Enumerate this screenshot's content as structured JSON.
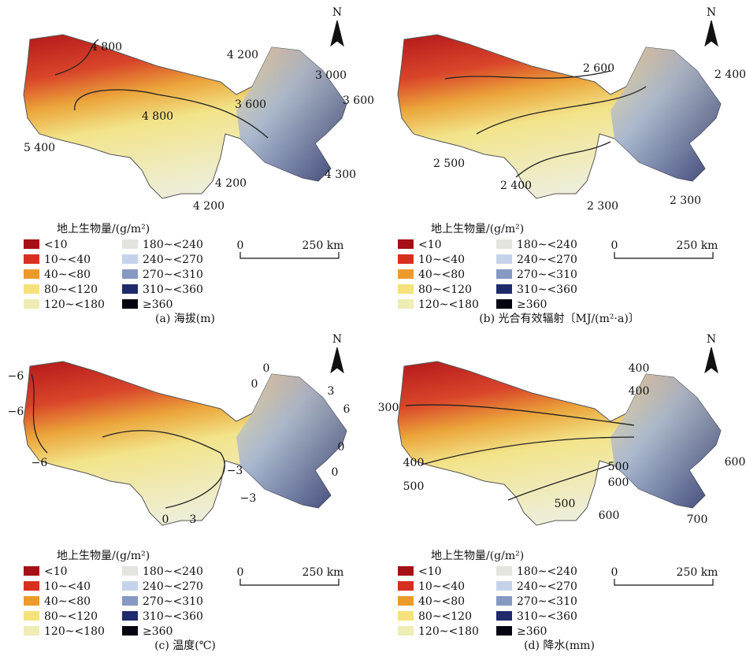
{
  "panels": [
    {
      "north": "N",
      "contour_labels": [
        "4 800",
        "4 200",
        "3 000",
        "3 600",
        "3 600",
        "4 800",
        "5 400",
        "4 300",
        "4 200",
        "4 200"
      ],
      "legend_title": "地上生物量/(g/m²)",
      "legend": [
        {
          "label": "<10",
          "color": "#a50f15"
        },
        {
          "label": "10~<40",
          "color": "#d7301f"
        },
        {
          "label": "40~<80",
          "color": "#ec9b2a"
        },
        {
          "label": "80~<120",
          "color": "#f5e27a"
        },
        {
          "label": "120~<180",
          "color": "#efecb4"
        },
        {
          "label": "180~<240",
          "color": "#e4e4de"
        },
        {
          "label": "240~<270",
          "color": "#c5d3ea"
        },
        {
          "label": "270~<310",
          "color": "#8599c2"
        },
        {
          "label": "310~<360",
          "color": "#1f2a6b"
        },
        {
          "label": "≥360",
          "color": "#050510"
        }
      ],
      "scale": [
        "0",
        "250 km"
      ],
      "caption": "(a)  海拔(m)"
    },
    {
      "north": "N",
      "contour_labels": [
        "2 600",
        "2 400",
        "2 500",
        "2 400",
        "2 300",
        "2 300"
      ],
      "legend_title": "地上生物量/(g/m²)",
      "legend": [
        {
          "label": "<10",
          "color": "#a50f15"
        },
        {
          "label": "10~<40",
          "color": "#d7301f"
        },
        {
          "label": "40~<80",
          "color": "#ec9b2a"
        },
        {
          "label": "80~<120",
          "color": "#f5e27a"
        },
        {
          "label": "120~<180",
          "color": "#efecb4"
        },
        {
          "label": "180~<240",
          "color": "#e4e4de"
        },
        {
          "label": "240~<270",
          "color": "#c5d3ea"
        },
        {
          "label": "270~<310",
          "color": "#8599c2"
        },
        {
          "label": "310~<360",
          "color": "#1f2a6b"
        },
        {
          "label": "≥360",
          "color": "#050510"
        }
      ],
      "scale": [
        "0",
        "250 km"
      ],
      "caption": "(b)  光合有效辐射〔MJ/(m²·a)〕"
    },
    {
      "north": "N",
      "contour_labels": [
        "−6",
        "−6",
        "0",
        "0",
        "3",
        "6",
        "−6",
        "0",
        "0",
        "−3",
        "−3",
        "0",
        "3"
      ],
      "legend_title": "地上生物量/(g/m²)",
      "legend": [
        {
          "label": "<10",
          "color": "#a50f15"
        },
        {
          "label": "10~<40",
          "color": "#d7301f"
        },
        {
          "label": "40~<80",
          "color": "#ec9b2a"
        },
        {
          "label": "80~<120",
          "color": "#f5e27a"
        },
        {
          "label": "120~<180",
          "color": "#efecb4"
        },
        {
          "label": "180~<240",
          "color": "#e4e4de"
        },
        {
          "label": "240~<270",
          "color": "#c5d3ea"
        },
        {
          "label": "270~<310",
          "color": "#8599c2"
        },
        {
          "label": "310~<360",
          "color": "#1f2a6b"
        },
        {
          "label": "≥360",
          "color": "#050510"
        }
      ],
      "scale": [
        "0",
        "250 km"
      ],
      "caption": "(c)  温度(℃)"
    },
    {
      "north": "N",
      "contour_labels": [
        "400",
        "400",
        "300",
        "600",
        "400",
        "500",
        "600",
        "500",
        "500",
        "600",
        "700"
      ],
      "legend_title": "地上生物量/(g/m²)",
      "legend": [
        {
          "label": "<10",
          "color": "#a50f15"
        },
        {
          "label": "10~<40",
          "color": "#d7301f"
        },
        {
          "label": "40~<80",
          "color": "#ec9b2a"
        },
        {
          "label": "80~<120",
          "color": "#f5e27a"
        },
        {
          "label": "120~<180",
          "color": "#efecb4"
        },
        {
          "label": "180~<240",
          "color": "#e4e4de"
        },
        {
          "label": "240~<270",
          "color": "#c5d3ea"
        },
        {
          "label": "270~<310",
          "color": "#8599c2"
        },
        {
          "label": "310~<360",
          "color": "#1f2a6b"
        },
        {
          "label": "≥360",
          "color": "#050510"
        }
      ],
      "scale": [
        "0",
        "250 km"
      ],
      "caption": "(d)  降水(mm)"
    }
  ]
}
